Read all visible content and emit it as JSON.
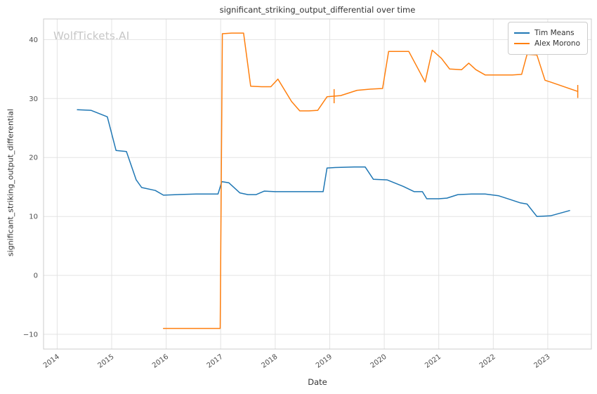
{
  "chart_data": {
    "type": "line",
    "title": "significant_striking_output_differential over time",
    "xlabel": "Date",
    "ylabel": "significant_striking_output_differential",
    "watermark": "WolfTickets.AI",
    "xlim": [
      2013.75,
      2023.8
    ],
    "ylim": [
      -12.5,
      43.5
    ],
    "xticks": [
      2014,
      2015,
      2016,
      2017,
      2018,
      2019,
      2020,
      2021,
      2022,
      2023
    ],
    "yticks": [
      -10,
      0,
      10,
      20,
      30,
      40
    ],
    "grid": true,
    "legend_position": "upper right",
    "style": {
      "grid_color": "#e3e3e3",
      "spine_color": "#cccccc",
      "tick_label_color": "#4d4d4d",
      "text_color": "#333333",
      "watermark_color": "#c6c6c6",
      "background": "#ffffff"
    },
    "series": [
      {
        "name": "Tim Means",
        "color": "#1f77b4",
        "x": [
          2014.37,
          2014.62,
          2014.92,
          2015.08,
          2015.27,
          2015.45,
          2015.55,
          2015.8,
          2015.95,
          2016.2,
          2016.55,
          2016.95,
          2017.02,
          2017.15,
          2017.35,
          2017.5,
          2017.65,
          2017.8,
          2018.0,
          2018.35,
          2018.7,
          2018.88,
          2018.95,
          2019.1,
          2019.45,
          2019.65,
          2019.8,
          2020.05,
          2020.35,
          2020.55,
          2020.7,
          2020.78,
          2021.0,
          2021.15,
          2021.35,
          2021.6,
          2021.85,
          2022.1,
          2022.3,
          2022.5,
          2022.62,
          2022.8,
          2023.05,
          2023.4
        ],
        "y": [
          28.1,
          28.0,
          26.9,
          21.2,
          21.0,
          16.2,
          14.9,
          14.4,
          13.6,
          13.7,
          13.8,
          13.8,
          15.9,
          15.7,
          14.0,
          13.7,
          13.7,
          14.3,
          14.2,
          14.2,
          14.2,
          14.2,
          18.2,
          18.3,
          18.4,
          18.4,
          16.3,
          16.2,
          15.1,
          14.2,
          14.2,
          13.0,
          13.0,
          13.1,
          13.7,
          13.8,
          13.8,
          13.5,
          12.9,
          12.3,
          12.1,
          10.0,
          10.1,
          11.0
        ]
      },
      {
        "name": "Alex Morono",
        "color": "#ff7f0e",
        "x": [
          2015.95,
          2016.4,
          2016.99,
          2017.03,
          2017.2,
          2017.42,
          2017.55,
          2017.75,
          2017.92,
          2018.05,
          2018.3,
          2018.45,
          2018.62,
          2018.78,
          2018.95,
          2019.2,
          2019.5,
          2019.75,
          2019.97,
          2020.08,
          2020.45,
          2020.75,
          2020.88,
          2021.05,
          2021.2,
          2021.42,
          2021.55,
          2021.68,
          2021.85,
          2022.1,
          2022.35,
          2022.52,
          2022.62,
          2022.8,
          2022.95,
          2023.05,
          2023.55
        ],
        "y": [
          -9.0,
          -9.0,
          -9.0,
          41.0,
          41.1,
          41.1,
          32.1,
          32.0,
          32.0,
          33.3,
          29.5,
          27.9,
          27.9,
          28.0,
          30.3,
          30.5,
          31.4,
          31.6,
          31.7,
          38.0,
          38.0,
          32.8,
          38.2,
          36.8,
          35.0,
          34.9,
          36.0,
          34.9,
          34.0,
          34.0,
          34.0,
          34.1,
          37.5,
          37.4,
          33.1,
          32.8,
          31.2
        ]
      }
    ],
    "error_bars": [
      {
        "series": "Alex Morono",
        "x": 2019.08,
        "y": 30.4,
        "yerr": 1.2,
        "color": "#ff7f0e"
      },
      {
        "series": "Alex Morono",
        "x": 2023.55,
        "y": 31.2,
        "yerr": 1.1,
        "color": "#ff7f0e"
      }
    ]
  }
}
